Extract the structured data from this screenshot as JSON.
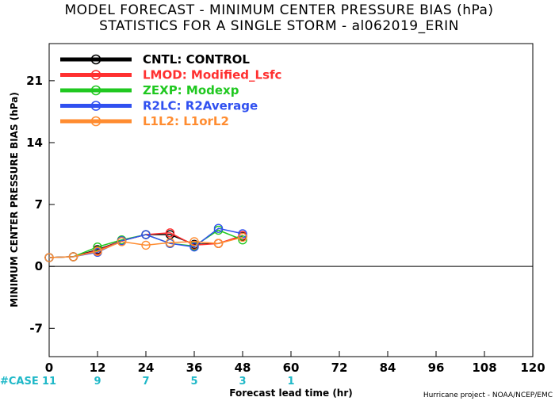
{
  "chart_data": {
    "type": "line",
    "title": "MODEL FORECAST - MINIMUM CENTER PRESSURE BIAS (hPa)",
    "subtitle": "STATISTICS FOR A SINGLE STORM - al062019_ERIN",
    "xlabel": "Forecast lead time (hr)",
    "ylabel": "MINIMUM CENTER PRESSURE BIAS (hPa)",
    "xlim": [
      0,
      120
    ],
    "ylim": [
      -10.2,
      25.2
    ],
    "x_ticks": [
      "0",
      "12",
      "24",
      "36",
      "48",
      "60",
      "72",
      "84",
      "96",
      "108",
      "120"
    ],
    "y_ticks": [
      "-7",
      "0",
      "7",
      "14",
      "21"
    ],
    "zero_line": true,
    "grid": false,
    "legend_position": "top-left",
    "case_label": "#CASE",
    "case_counts": [
      {
        "x": 0,
        "count": "11"
      },
      {
        "x": 12,
        "count": "9"
      },
      {
        "x": 24,
        "count": "7"
      },
      {
        "x": 36,
        "count": "5"
      },
      {
        "x": 48,
        "count": "3"
      },
      {
        "x": 60,
        "count": "1"
      }
    ],
    "x": [
      0,
      6,
      12,
      18,
      24,
      30,
      36,
      42,
      48
    ],
    "series": [
      {
        "name": "CNTL:  CONTROL",
        "color": "#000000",
        "values": [
          1.0,
          1.1,
          1.9,
          2.9,
          3.6,
          3.6,
          2.5,
          2.6,
          3.4
        ]
      },
      {
        "name": "LMOD:  Modified_Lsfc",
        "color": "#ff3030",
        "values": [
          1.0,
          1.1,
          1.8,
          2.9,
          3.6,
          3.8,
          2.4,
          2.6,
          3.5
        ]
      },
      {
        "name": "ZEXP:  Modexp",
        "color": "#20c820",
        "values": [
          1.0,
          1.1,
          2.2,
          3.0,
          3.6,
          2.6,
          2.3,
          4.1,
          3.0
        ]
      },
      {
        "name": "R2LC:  R2Average",
        "color": "#3050f0",
        "values": [
          1.0,
          1.1,
          1.6,
          2.9,
          3.6,
          2.6,
          2.2,
          4.3,
          3.7
        ]
      },
      {
        "name": "L1L2:  L1orL2",
        "color": "#ff8c30",
        "values": [
          1.0,
          1.1,
          1.7,
          2.8,
          2.4,
          2.7,
          2.8,
          2.6,
          3.3
        ]
      }
    ]
  },
  "credit": "Hurricane project - NOAA/NCEP/EMC"
}
